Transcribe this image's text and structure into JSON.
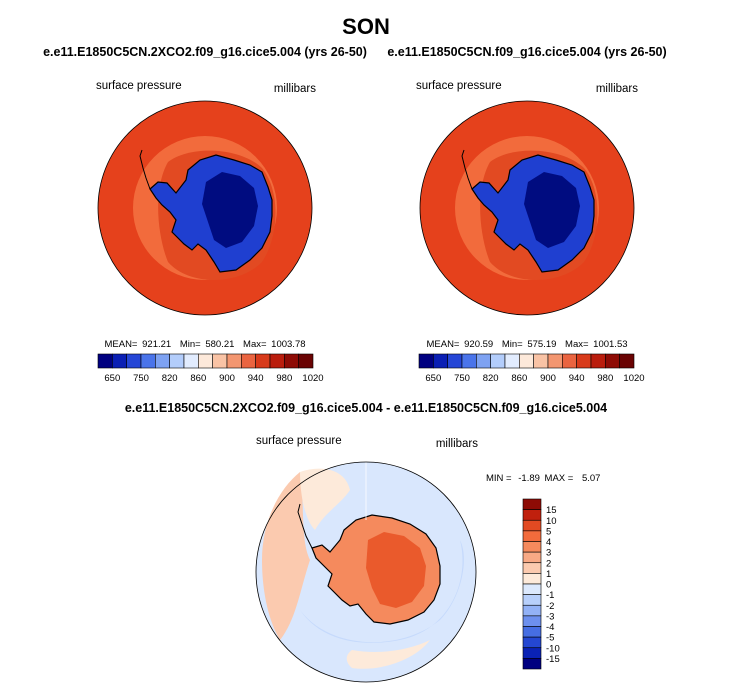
{
  "figure": {
    "title": "SON"
  },
  "chart_data": [
    {
      "type": "heatmap",
      "title": "e.e11.E1850C5CN.2XCO2.f09_g16.cice5.004 (yrs 26-50)",
      "left_label": "surface pressure",
      "right_label": "millibars",
      "stats": {
        "mean_label": "MEAN=",
        "mean": "921.21",
        "min_label": "Min=",
        "min": "580.21",
        "max_label": "Max=",
        "max": "1003.78"
      },
      "colorbar": {
        "orientation": "horizontal",
        "ticks": [
          "650",
          "750",
          "820",
          "860",
          "900",
          "940",
          "980",
          "1020"
        ],
        "colors": [
          "#000080",
          "#0a1fb4",
          "#2546d6",
          "#4a74ea",
          "#7ea2f2",
          "#b3cdfb",
          "#e2ecfe",
          "#fde9da",
          "#f9c3a5",
          "#f39670",
          "#ea6440",
          "#d83a1a",
          "#ba1d0d",
          "#8e0b05",
          "#6a0303"
        ]
      },
      "field": {
        "ocean_main": "#e5411c",
        "ocean_band": "#f26b3c",
        "land_low": "#1f3fd0",
        "land_high": "#000c80",
        "coast": "#000000"
      }
    },
    {
      "type": "heatmap",
      "title": "e.e11.E1850C5CN.f09_g16.cice5.004 (yrs 26-50)",
      "left_label": "surface pressure",
      "right_label": "millibars",
      "stats": {
        "mean_label": "MEAN=",
        "mean": "920.59",
        "min_label": "Min=",
        "min": "575.19",
        "max_label": "Max=",
        "max": "1001.53"
      },
      "colorbar": {
        "orientation": "horizontal",
        "ticks": [
          "650",
          "750",
          "820",
          "860",
          "900",
          "940",
          "980",
          "1020"
        ],
        "colors": [
          "#000080",
          "#0a1fb4",
          "#2546d6",
          "#4a74ea",
          "#7ea2f2",
          "#b3cdfb",
          "#e2ecfe",
          "#fde9da",
          "#f9c3a5",
          "#f39670",
          "#ea6440",
          "#d83a1a",
          "#ba1d0d",
          "#8e0b05",
          "#6a0303"
        ]
      },
      "field": {
        "ocean_main": "#e5411c",
        "ocean_band": "#f26b3c",
        "land_low": "#1f3fd0",
        "land_high": "#000c80",
        "coast": "#000000"
      }
    },
    {
      "type": "heatmap",
      "title": "e.e11.E1850C5CN.2XCO2.f09_g16.cice5.004 - e.e11.E1850C5CN.f09_g16.cice5.004",
      "left_label": "surface pressure",
      "right_label": "millibars",
      "stats": {
        "min_label": "MIN =",
        "min": "-1.89",
        "max_label": "MAX =",
        "max": "5.07"
      },
      "colorbar": {
        "orientation": "vertical",
        "ticks": [
          "15",
          "10",
          "5",
          "4",
          "3",
          "2",
          "1",
          "0",
          "-1",
          "-2",
          "-3",
          "-4",
          "-5",
          "-10",
          "-15"
        ],
        "colors": [
          "#8e0b05",
          "#c0200d",
          "#e24a22",
          "#f26b3c",
          "#f58a5d",
          "#f8a985",
          "#fbcaaf",
          "#fdeada",
          "#dce9fd",
          "#b8d0fb",
          "#93b2f6",
          "#6d90ee",
          "#466ee3",
          "#2447d2",
          "#0a22b5",
          "#000080"
        ]
      },
      "field": {
        "ocean_main": "#d9e7fd",
        "ocean_band": "#c6dafc",
        "land_low": "#f58a5d",
        "land_high": "#ea5a2c",
        "coast": "#000000"
      }
    }
  ]
}
